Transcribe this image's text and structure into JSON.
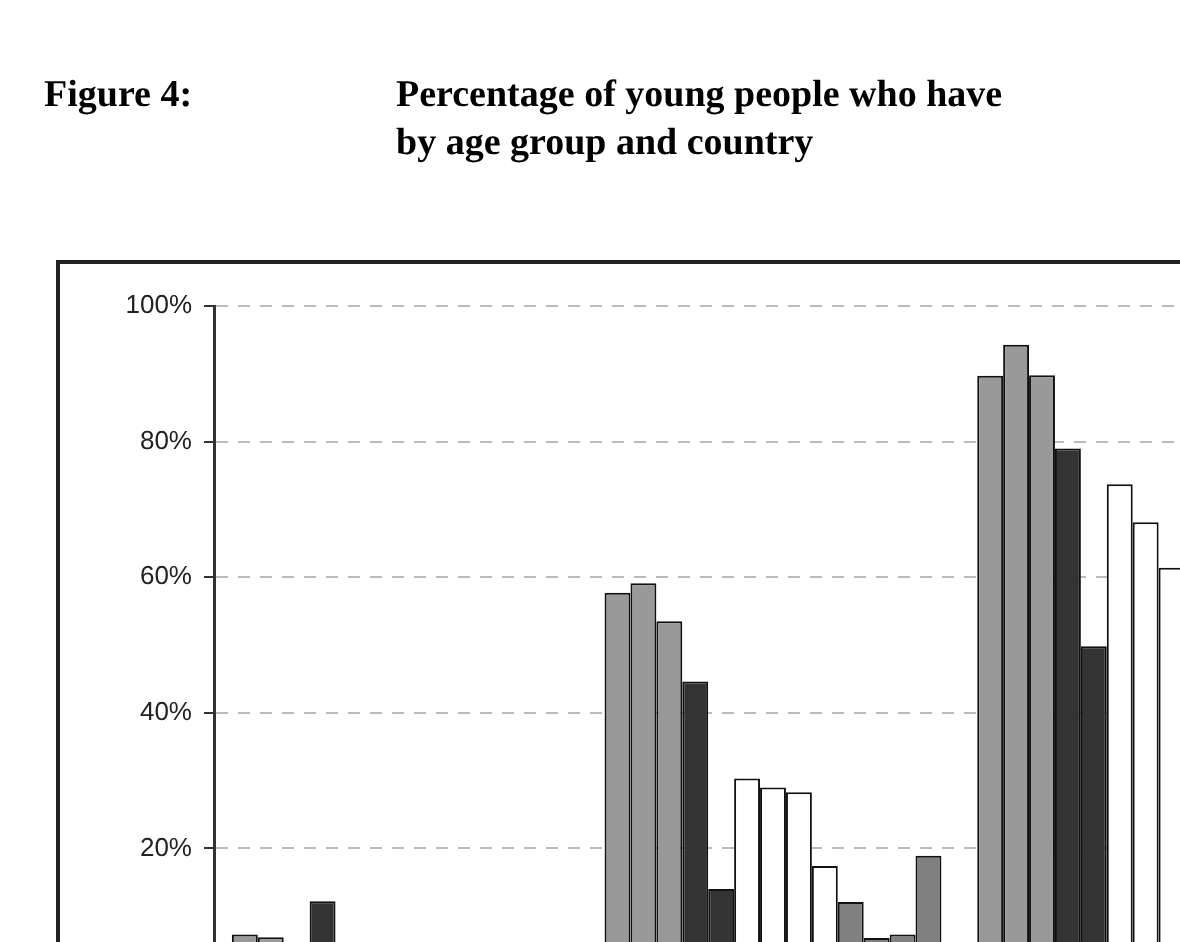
{
  "chart_data": {
    "type": "bar",
    "title": "Percentage of young people who have\nby age group and country",
    "annotations": [
      "Figure 4:"
    ],
    "categories": [
      null,
      null,
      null
    ],
    "series": [
      {
        "color": "#999999",
        "values": [
          7.3,
          57.7,
          89.7
        ]
      },
      {
        "color": "#999999",
        "values": [
          6.9,
          59.1,
          94.3
        ]
      },
      {
        "color": "#999999",
        "values": [
          null,
          53.5,
          89.8
        ]
      },
      {
        "color": "#333333",
        "values": [
          12.2,
          44.6,
          79
        ]
      },
      {
        "color": "#333333",
        "values": [
          null,
          14,
          49.8
        ]
      },
      {
        "color": "#ffffff",
        "values": [
          null,
          30.3,
          73.7
        ]
      },
      {
        "color": "#ffffff",
        "values": [
          null,
          29,
          68.1
        ]
      },
      {
        "color": "#ffffff",
        "values": [
          null,
          28.3,
          61.4
        ]
      },
      {
        "color": "#ffffff",
        "values": [
          null,
          17.4,
          null
        ]
      },
      {
        "color": "#808080",
        "values": [
          null,
          12.1,
          null
        ]
      },
      {
        "color": "#808080",
        "values": [
          null,
          6.8,
          null
        ]
      },
      {
        "color": "#808080",
        "values": [
          null,
          7.3,
          null
        ]
      },
      {
        "color": "#808080",
        "values": [
          null,
          18.9,
          null
        ]
      }
    ],
    "ylim": [
      0,
      100
    ],
    "yticks": [
      {
        "value": 20,
        "label": "20%"
      },
      {
        "value": 40,
        "label": "40%"
      },
      {
        "value": 60,
        "label": "60%"
      },
      {
        "value": 80,
        "label": "80%"
      },
      {
        "value": 100,
        "label": "100%"
      }
    ],
    "grid": "y",
    "legend": false
  }
}
